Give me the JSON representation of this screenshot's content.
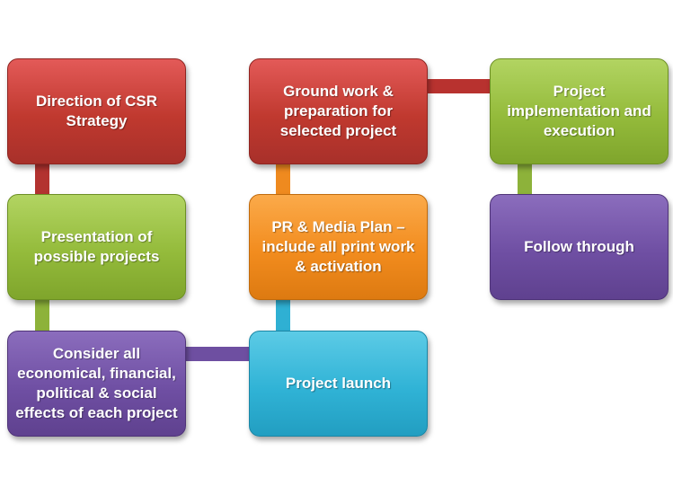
{
  "diagram": {
    "steps": [
      {
        "label": "Direction of CSR\nStrategy",
        "color": "#c0392f"
      },
      {
        "label": "Presentation of\npossible projects",
        "color": "#94bb3b"
      },
      {
        "label": "Consider all\neconomical, financial,\npolitical & social\neffects of each project",
        "color": "#6f4fa3"
      },
      {
        "label": "Project launch",
        "color": "#30b3d6"
      },
      {
        "label": "PR & Media Plan –\ninclude all print work\n& activation",
        "color": "#f28c1e"
      },
      {
        "label": "Ground work &\npreparation for\nselected project",
        "color": "#c0392f"
      },
      {
        "label": "Project\nimplementation and\nexecution",
        "color": "#94bb3b"
      },
      {
        "label": "Follow through",
        "color": "#6f4fa3"
      }
    ]
  }
}
